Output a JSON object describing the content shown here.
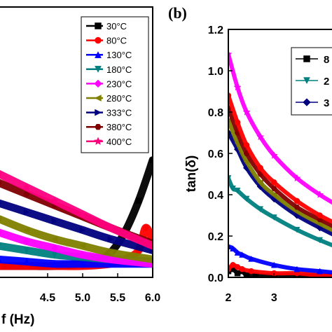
{
  "chart_data": [
    {
      "type": "scatter",
      "panel_label": "",
      "xlabel": "f (Hz)",
      "ylabel": "",
      "xlim": [
        3.8,
        6.0
      ],
      "ylim": [
        0,
        1.2
      ],
      "xticks": [
        "4.5",
        "5.0",
        "5.5",
        "6.0"
      ],
      "xtick_values": [
        4.5,
        5.0,
        5.5,
        6.0
      ],
      "legend_position": "top-right",
      "series": [
        {
          "name": "30°C",
          "color": "#000000",
          "marker": "square",
          "x": [
            3.8,
            4.2,
            4.6,
            5.0,
            5.2,
            5.4,
            5.6,
            5.8,
            6.0
          ],
          "y": [
            0.05,
            0.05,
            0.05,
            0.06,
            0.07,
            0.11,
            0.2,
            0.34,
            0.52
          ]
        },
        {
          "name": "80°C",
          "color": "#ff0000",
          "marker": "circle",
          "x": [
            3.8,
            4.2,
            4.6,
            5.0,
            5.4,
            5.6,
            5.8,
            5.9,
            6.0
          ],
          "y": [
            0.05,
            0.05,
            0.05,
            0.05,
            0.06,
            0.08,
            0.12,
            0.22,
            0.16
          ]
        },
        {
          "name": "130°C",
          "color": "#0000ff",
          "marker": "triangle-up",
          "x": [
            3.8,
            4.2,
            4.6,
            5.0,
            5.4,
            6.0
          ],
          "y": [
            0.08,
            0.07,
            0.06,
            0.06,
            0.06,
            0.06
          ]
        },
        {
          "name": "180°C",
          "color": "#008080",
          "marker": "triangle-down",
          "x": [
            3.8,
            4.2,
            4.6,
            5.0,
            5.4,
            6.0
          ],
          "y": [
            0.14,
            0.12,
            0.1,
            0.09,
            0.08,
            0.07
          ]
        },
        {
          "name": "230°C",
          "color": "#ff00ff",
          "marker": "diamond",
          "x": [
            3.8,
            4.2,
            4.6,
            5.0,
            5.4,
            6.0
          ],
          "y": [
            0.2,
            0.16,
            0.13,
            0.1,
            0.08,
            0.06
          ]
        },
        {
          "name": "280°C",
          "color": "#808000",
          "marker": "triangle-left",
          "x": [
            3.8,
            4.2,
            4.6,
            5.0,
            5.4,
            6.0
          ],
          "y": [
            0.26,
            0.21,
            0.17,
            0.14,
            0.11,
            0.08
          ]
        },
        {
          "name": "333°C",
          "color": "#000080",
          "marker": "triangle-right",
          "x": [
            3.8,
            4.2,
            4.6,
            5.0,
            5.4,
            6.0
          ],
          "y": [
            0.33,
            0.29,
            0.25,
            0.21,
            0.17,
            0.12
          ]
        },
        {
          "name": "380°C",
          "color": "#800000",
          "marker": "hexagon",
          "x": [
            3.8,
            4.2,
            4.6,
            5.0,
            5.4,
            6.0
          ],
          "y": [
            0.42,
            0.37,
            0.32,
            0.27,
            0.22,
            0.15
          ]
        },
        {
          "name": "400°C",
          "color": "#ff007f",
          "marker": "star",
          "x": [
            3.8,
            4.2,
            4.6,
            5.0,
            5.4,
            6.0
          ],
          "y": [
            0.46,
            0.4,
            0.34,
            0.28,
            0.22,
            0.14
          ]
        }
      ]
    },
    {
      "type": "scatter",
      "panel_label": "(b)",
      "xlabel": "",
      "ylabel": "tan(δ)",
      "xlim": [
        2.0,
        4.45
      ],
      "ylim": [
        0,
        1.2
      ],
      "yticks": [
        "0.0",
        "0.2",
        "0.4",
        "0.6",
        "0.8",
        "1.0",
        "1.2"
      ],
      "ytick_values": [
        0.0,
        0.2,
        0.4,
        0.6,
        0.8,
        1.0,
        1.2
      ],
      "xticks": [
        "2",
        "3"
      ],
      "xtick_values": [
        2,
        3
      ],
      "legend_position": "top-right",
      "legend_visible_text": [
        "8",
        "2",
        "3"
      ],
      "series": [
        {
          "name": "",
          "color": "#000000",
          "marker": "square",
          "x": [
            2.0,
            2.1,
            2.2,
            2.3,
            2.4,
            2.6,
            3.0,
            3.5,
            4.0,
            4.45
          ],
          "y": [
            0.03,
            0.04,
            0.02,
            0.03,
            0.01,
            0.01,
            0.01,
            0.01,
            0.01,
            0.01
          ]
        },
        {
          "name": "",
          "color": "#ff0000",
          "marker": "circle",
          "x": [
            2.0,
            2.1,
            2.2,
            2.3,
            2.5,
            3.0,
            3.5,
            4.0,
            4.45
          ],
          "y": [
            0.04,
            0.06,
            0.05,
            0.04,
            0.03,
            0.02,
            0.02,
            0.01,
            0.01
          ]
        },
        {
          "name": "",
          "color": "#0000ff",
          "marker": "triangle-up",
          "x": [
            2.0,
            2.1,
            2.2,
            2.3,
            2.5,
            3.0,
            3.5,
            4.0,
            4.45
          ],
          "y": [
            0.15,
            0.14,
            0.12,
            0.11,
            0.09,
            0.06,
            0.04,
            0.03,
            0.02
          ]
        },
        {
          "name": "",
          "color": "#008080",
          "marker": "triangle-down",
          "x": [
            2.0,
            2.1,
            2.2,
            2.4,
            2.7,
            3.0,
            3.5,
            4.0,
            4.45
          ],
          "y": [
            0.48,
            0.43,
            0.42,
            0.38,
            0.33,
            0.29,
            0.23,
            0.18,
            0.14
          ]
        },
        {
          "name": "",
          "color": "#000080",
          "marker": "diamond",
          "x": [
            2.0,
            2.2,
            2.4,
            2.7,
            3.0,
            3.5,
            4.0,
            4.45
          ],
          "y": [
            0.7,
            0.62,
            0.53,
            0.44,
            0.38,
            0.3,
            0.24,
            0.19
          ]
        },
        {
          "name": "",
          "color": "#808000",
          "marker": "triangle-left",
          "x": [
            2.0,
            2.2,
            2.4,
            2.7,
            3.0,
            3.5,
            4.0,
            4.45
          ],
          "y": [
            0.76,
            0.65,
            0.56,
            0.46,
            0.4,
            0.32,
            0.26,
            0.21
          ]
        },
        {
          "name": "",
          "color": "#800000",
          "marker": "hexagon",
          "x": [
            2.0,
            2.2,
            2.4,
            2.7,
            3.0,
            3.5,
            4.0,
            4.45
          ],
          "y": [
            0.82,
            0.7,
            0.6,
            0.5,
            0.43,
            0.34,
            0.28,
            0.23
          ]
        },
        {
          "name": "",
          "color": "#ff0000",
          "marker": "circle",
          "x": [
            2.0,
            2.2,
            2.4,
            2.7,
            3.0,
            3.5,
            4.0,
            4.45
          ],
          "y": [
            0.88,
            0.75,
            0.64,
            0.53,
            0.46,
            0.37,
            0.3,
            0.25
          ]
        },
        {
          "name": "",
          "color": "#ff00ff",
          "marker": "star",
          "x": [
            2.0,
            2.2,
            2.4,
            2.7,
            3.0,
            3.5,
            4.0,
            4.45
          ],
          "y": [
            1.08,
            0.92,
            0.8,
            0.68,
            0.59,
            0.48,
            0.4,
            0.34
          ]
        }
      ]
    }
  ]
}
